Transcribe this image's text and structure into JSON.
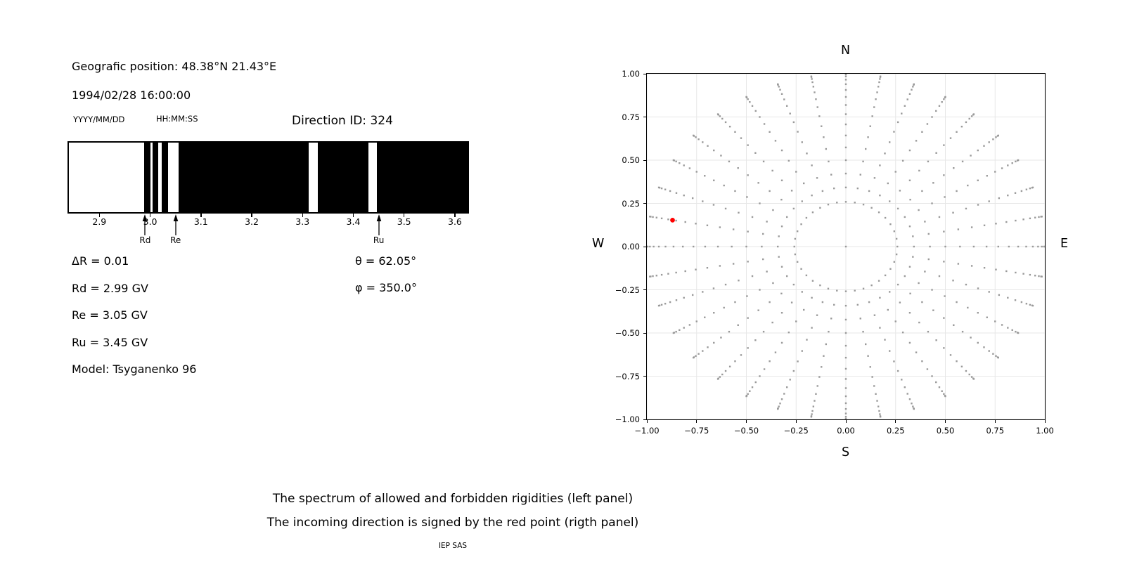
{
  "title_block": {
    "geo_position": "Geografic position: 48.38°N 21.43°E",
    "datetime": "1994/02/28 16:00:00",
    "date_format_label": "YYYY/MM/DD",
    "time_format_label": "HH:MM:SS",
    "direction_id": "Direction ID: 324"
  },
  "parameters": {
    "delta_r": "ΔR = 0.01",
    "rd": "Rd = 2.99 GV",
    "re": "Re = 3.05 GV",
    "ru": "Ru = 3.45 GV",
    "model": "Model: Tsyganenko 96",
    "theta": "θ = 62.05°",
    "phi": "φ = 350.0°"
  },
  "caption": {
    "line1": "The spectrum of allowed and forbidden rigidities (left panel)",
    "line2": "The incoming direction is signed by the red point (rigth panel)",
    "credit": "IEP SAS"
  },
  "chart_data": [
    {
      "type": "bar",
      "name": "rigidity-spectrum",
      "description": "Barcode-style spectrum: black = forbidden rigidities, white = allowed rigidities",
      "xlim": [
        2.84,
        3.625
      ],
      "xticks": [
        2.9,
        3.0,
        3.1,
        3.2,
        3.3,
        3.4,
        3.5,
        3.6
      ],
      "xtick_labels": [
        "2.9",
        "3.0",
        "3.1",
        "3.2",
        "3.3",
        "3.4",
        "3.5",
        "3.6"
      ],
      "bar_color": "#000000",
      "background": "#ffffff",
      "forbidden_bands": [
        [
          2.988,
          3.0
        ],
        [
          3.005,
          3.016
        ],
        [
          3.022,
          3.035
        ],
        [
          3.056,
          3.312
        ],
        [
          3.33,
          3.43
        ],
        [
          3.446,
          3.625
        ]
      ],
      "allowed_gaps": [
        [
          2.84,
          2.988
        ],
        [
          3.0,
          3.005
        ],
        [
          3.016,
          3.022
        ],
        [
          3.035,
          3.056
        ],
        [
          3.312,
          3.33
        ],
        [
          3.43,
          3.446
        ]
      ],
      "markers": [
        {
          "label": "Rd",
          "value": 2.99
        },
        {
          "label": "Re",
          "value": 3.05
        },
        {
          "label": "Ru",
          "value": 3.45
        }
      ]
    },
    {
      "type": "scatter",
      "name": "incoming-direction-map",
      "xlim": [
        -1,
        1
      ],
      "ylim": [
        -1,
        1
      ],
      "xticks": [
        -1,
        -0.75,
        -0.5,
        -0.25,
        0,
        0.25,
        0.5,
        0.75,
        1
      ],
      "yticks": [
        1,
        0.75,
        0.5,
        0.25,
        0,
        -0.25,
        -0.5,
        -0.75,
        -1
      ],
      "xtick_labels": [
        "−1.00",
        "−0.75",
        "−0.50",
        "−0.25",
        "0.00",
        "0.25",
        "0.50",
        "0.75",
        "1.00"
      ],
      "ytick_labels": [
        "1.00",
        "0.75",
        "0.50",
        "0.25",
        "0.00",
        "−0.25",
        "−0.50",
        "−0.75",
        "−1.00"
      ],
      "compass": {
        "top": "N",
        "bottom": "S",
        "left": "W",
        "right": "E"
      },
      "grid": true,
      "grid_color": "#e7e7e7",
      "dot_color": "#9a9a9a",
      "dot_size_px": 2.4,
      "direction_grid": {
        "azimuth_start_deg": 0,
        "azimuth_step_deg": 10,
        "azimuth_count": 36,
        "zenith_min_deg": 15,
        "zenith_max_deg": 90,
        "zenith_step_deg": 5,
        "radius_mapping": "sin(zenith)",
        "center_dot": true
      },
      "red_point": {
        "x": -0.871,
        "y": 0.153,
        "color": "#ff0000",
        "radius_px": 3.4
      }
    }
  ]
}
